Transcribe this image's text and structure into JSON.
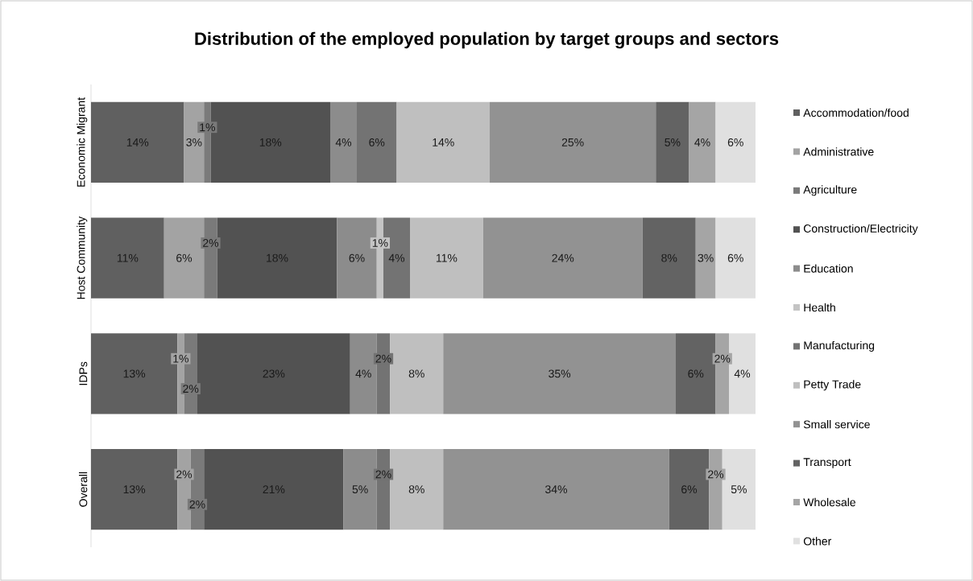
{
  "chart_data": {
    "type": "bar",
    "orientation": "horizontal",
    "stacked": true,
    "title": "Distribution of the employed population by target groups and sectors",
    "categories": [
      "Economic Migrant",
      "Host Community",
      "IDPs",
      "Overall"
    ],
    "tick_labels": "y",
    "legend": "right",
    "grid": false,
    "series": [
      {
        "name": "Accommodation/food",
        "color": "#606060",
        "values": [
          14,
          11,
          13,
          13
        ],
        "value_labels": [
          "14%",
          "11%",
          "13%",
          "13%"
        ]
      },
      {
        "name": "Administrative",
        "color": "#a3a3a3",
        "values": [
          3,
          6,
          1,
          2
        ],
        "value_labels": [
          "3%",
          "6%",
          "1%",
          "2%"
        ]
      },
      {
        "name": "Agriculture",
        "color": "#7a7a7a",
        "values": [
          1,
          2,
          2,
          2
        ],
        "value_labels": [
          "1%",
          "2%",
          "2%",
          "2%"
        ]
      },
      {
        "name": "Construction/Electricity",
        "color": "#525252",
        "values": [
          18,
          18,
          23,
          21
        ],
        "value_labels": [
          "18%",
          "18%",
          "23%",
          "21%"
        ]
      },
      {
        "name": "Education",
        "color": "#8c8c8c",
        "values": [
          4,
          6,
          4,
          5
        ],
        "value_labels": [
          "4%",
          "6%",
          "4%",
          "5%"
        ]
      },
      {
        "name": "Health",
        "color": "#c4c4c4",
        "values": [
          null,
          1,
          null,
          null
        ],
        "value_labels": [
          null,
          "1%",
          null,
          null
        ]
      },
      {
        "name": "Manufacturing",
        "color": "#737373",
        "values": [
          6,
          4,
          2,
          2
        ],
        "value_labels": [
          "6%",
          "4%",
          "2%",
          "2%"
        ]
      },
      {
        "name": "Petty Trade",
        "color": "#bfbfbf",
        "values": [
          14,
          11,
          8,
          8
        ],
        "value_labels": [
          "14%",
          "11%",
          "8%",
          "8%"
        ]
      },
      {
        "name": "Small service",
        "color": "#929292",
        "values": [
          25,
          24,
          35,
          34
        ],
        "value_labels": [
          "25%",
          "24%",
          "35%",
          "34%"
        ]
      },
      {
        "name": "Transport",
        "color": "#636363",
        "values": [
          5,
          8,
          6,
          6
        ],
        "value_labels": [
          "5%",
          "8%",
          "6%",
          "6%"
        ]
      },
      {
        "name": "Wholesale",
        "color": "#a5a5a5",
        "values": [
          4,
          3,
          2,
          2
        ],
        "value_labels": [
          "4%",
          "3%",
          "2%",
          "2%"
        ]
      },
      {
        "name": "Other",
        "color": "#e0e0e0",
        "values": [
          6,
          6,
          4,
          5
        ],
        "value_labels": [
          "6%",
          "6%",
          "4%",
          "5%"
        ]
      }
    ]
  }
}
